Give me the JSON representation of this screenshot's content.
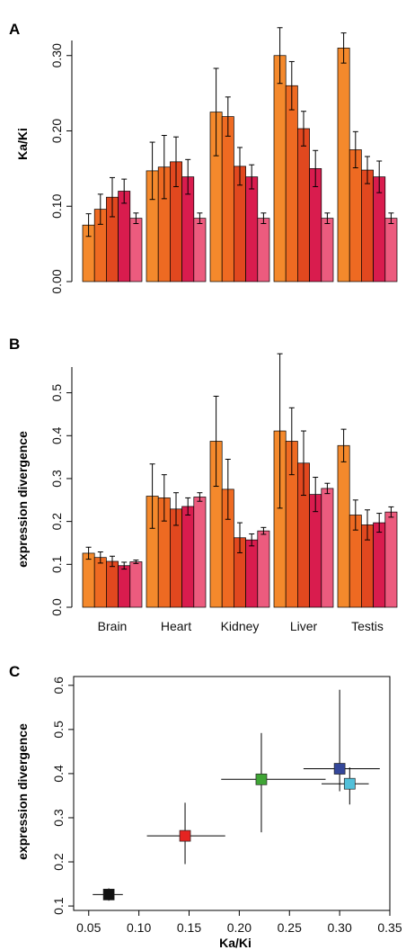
{
  "panels": {
    "a": {
      "letter": "A"
    },
    "b": {
      "letter": "B"
    },
    "c": {
      "letter": "C"
    }
  },
  "series_colors": [
    "#F4892C",
    "#EE6A22",
    "#E1481F",
    "#D91C4E",
    "#EC5B7E"
  ],
  "scatter_colors": {
    "Brain": "#111111",
    "Heart": "#E52421",
    "Kidney": "#3FA535",
    "Liver": "#34479A",
    "Testis": "#53C0D9"
  },
  "chart_data": [
    {
      "type": "bar",
      "panel": "A",
      "ylabel": "Ka/Ki",
      "xlabel": "",
      "ylim": [
        0,
        0.32
      ],
      "yticks": [
        "0.00",
        "0.10",
        "0.20",
        "0.30"
      ],
      "categories": [
        "Brain",
        "Heart",
        "Kidney",
        "Liver",
        "Testis"
      ],
      "show_category_labels": false,
      "values": [
        [
          0.075,
          0.096,
          0.112,
          0.12,
          0.084
        ],
        [
          0.147,
          0.152,
          0.159,
          0.139,
          0.084
        ],
        [
          0.225,
          0.219,
          0.153,
          0.139,
          0.084
        ],
        [
          0.3,
          0.26,
          0.203,
          0.15,
          0.084
        ],
        [
          0.31,
          0.175,
          0.148,
          0.139,
          0.084
        ]
      ],
      "errors": [
        [
          0.015,
          0.02,
          0.026,
          0.016,
          0.007
        ],
        [
          0.038,
          0.042,
          0.033,
          0.023,
          0.007
        ],
        [
          0.058,
          0.026,
          0.025,
          0.016,
          0.007
        ],
        [
          0.037,
          0.032,
          0.023,
          0.024,
          0.007
        ],
        [
          0.02,
          0.024,
          0.018,
          0.021,
          0.007
        ]
      ],
      "grid": false
    },
    {
      "type": "bar",
      "panel": "B",
      "ylabel": "expression divergence",
      "xlabel": "",
      "ylim": [
        0,
        0.56
      ],
      "yticks": [
        "0.0",
        "0.1",
        "0.2",
        "0.3",
        "0.4",
        "0.5"
      ],
      "categories": [
        "Brain",
        "Heart",
        "Kidney",
        "Liver",
        "Testis"
      ],
      "show_category_labels": true,
      "values": [
        [
          0.126,
          0.116,
          0.107,
          0.097,
          0.106
        ],
        [
          0.259,
          0.255,
          0.229,
          0.235,
          0.257
        ],
        [
          0.387,
          0.275,
          0.162,
          0.157,
          0.178
        ],
        [
          0.411,
          0.387,
          0.336,
          0.263,
          0.277
        ],
        [
          0.377,
          0.215,
          0.192,
          0.197,
          0.222
        ]
      ],
      "errors": [
        [
          0.014,
          0.013,
          0.012,
          0.008,
          0.004
        ],
        [
          0.075,
          0.054,
          0.038,
          0.02,
          0.01
        ],
        [
          0.105,
          0.07,
          0.035,
          0.014,
          0.008
        ],
        [
          0.18,
          0.078,
          0.075,
          0.04,
          0.012
        ],
        [
          0.038,
          0.035,
          0.035,
          0.022,
          0.012
        ]
      ],
      "grid": false
    },
    {
      "type": "scatter",
      "panel": "C",
      "xlabel": "Ka/Ki",
      "ylabel": "expression divergence",
      "xlim": [
        0.035,
        0.35
      ],
      "ylim": [
        0.09,
        0.62
      ],
      "xticks": [
        "0.05",
        "0.10",
        "0.15",
        "0.20",
        "0.25",
        "0.30",
        "0.35"
      ],
      "yticks": [
        "0.1",
        "0.2",
        "0.3",
        "0.4",
        "0.5",
        "0.6"
      ],
      "points": [
        {
          "category": "Brain",
          "x": 0.07,
          "y": 0.126,
          "xerr": [
            0.054,
            0.084
          ],
          "yerr": [
            0.112,
            0.14
          ]
        },
        {
          "category": "Heart",
          "x": 0.146,
          "y": 0.259,
          "xerr": [
            0.108,
            0.186
          ],
          "yerr": [
            0.195,
            0.334
          ]
        },
        {
          "category": "Kidney",
          "x": 0.222,
          "y": 0.387,
          "xerr": [
            0.182,
            0.286
          ],
          "yerr": [
            0.267,
            0.492
          ]
        },
        {
          "category": "Liver",
          "x": 0.3,
          "y": 0.411,
          "xerr": [
            0.264,
            0.34
          ],
          "yerr": [
            0.36,
            0.59
          ]
        },
        {
          "category": "Testis",
          "x": 0.31,
          "y": 0.377,
          "xerr": [
            0.282,
            0.329
          ],
          "yerr": [
            0.33,
            0.414
          ]
        }
      ],
      "grid": false
    }
  ]
}
